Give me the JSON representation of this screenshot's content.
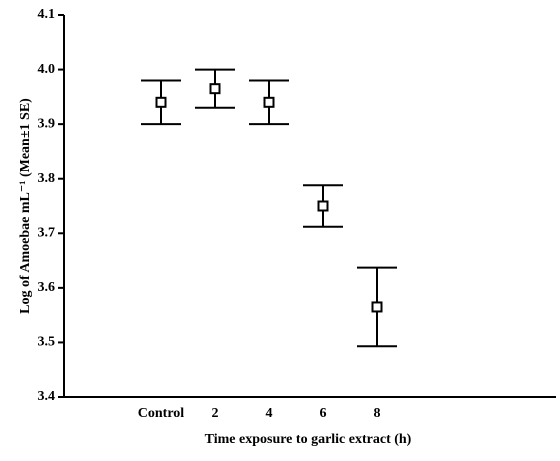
{
  "chart_data": {
    "type": "errorbar",
    "x_label": "Time exposure to garlic  extract  (h)",
    "y_label": "Log of Amoebae mL⁻¹ (Mean±1 SE)",
    "categories": [
      "Control",
      "2",
      "4",
      "6",
      "8"
    ],
    "values": [
      3.94,
      3.965,
      3.94,
      3.75,
      3.565
    ],
    "errors": [
      0.04,
      0.035,
      0.04,
      0.038,
      0.072
    ],
    "color": "#000000",
    "ylim": [
      3.4,
      4.1
    ],
    "yticks": [
      {
        "value": 3.4,
        "label": "3.4"
      },
      {
        "value": 3.5,
        "label": "3.5"
      },
      {
        "value": 3.6,
        "label": "3.6"
      },
      {
        "value": 3.7,
        "label": "3.7"
      },
      {
        "value": 3.8,
        "label": "3.8"
      },
      {
        "value": 3.9,
        "label": "3.9"
      },
      {
        "value": 4.0,
        "label": "4.0"
      },
      {
        "value": 4.1,
        "label": "4.1"
      }
    ],
    "grid": false
  }
}
